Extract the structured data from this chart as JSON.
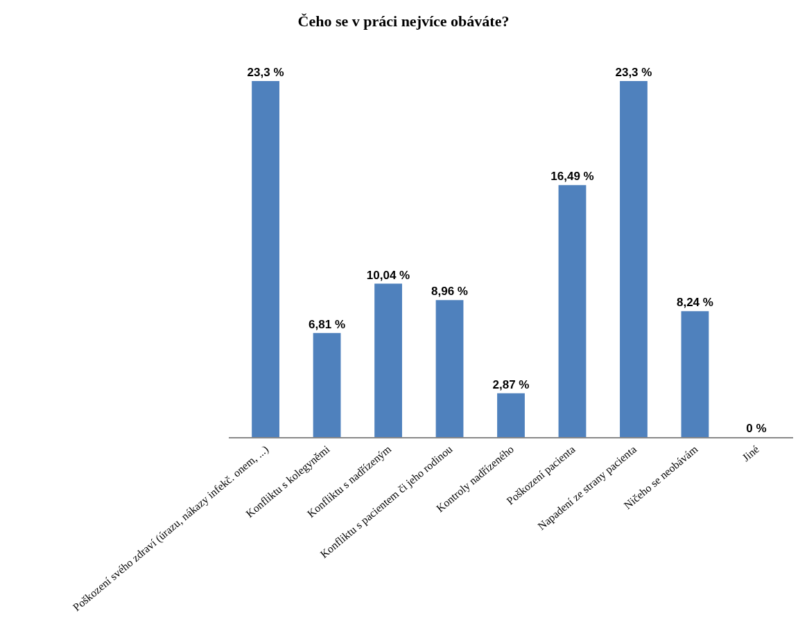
{
  "chart_data": {
    "type": "bar",
    "title": "Čeho se v práci nejvíce obáváte?",
    "categories": [
      "Poškození svého zdraví (úrazu, nákazy infekč. onem, ...)",
      "Konfliktu s kolegyněmi",
      "Konfliktu s nadřízeným",
      "Konfliktu s pacientem či jeho rodinou",
      "Kontroly nadřízeného",
      "Poškození pacienta",
      "Napadení ze strany pacienta",
      "Ničeho se neobávám",
      "Jiné"
    ],
    "values": [
      23.3,
      6.81,
      10.04,
      8.96,
      2.87,
      16.49,
      23.3,
      8.24,
      0
    ],
    "value_labels": [
      "23,3 %",
      "6,81 %",
      "10,04 %",
      "8,96 %",
      "2,87 %",
      "16,49 %",
      "23,3 %",
      "8,24 %",
      "0 %"
    ],
    "color": "#4f81bd",
    "tick_labels": "x"
  }
}
